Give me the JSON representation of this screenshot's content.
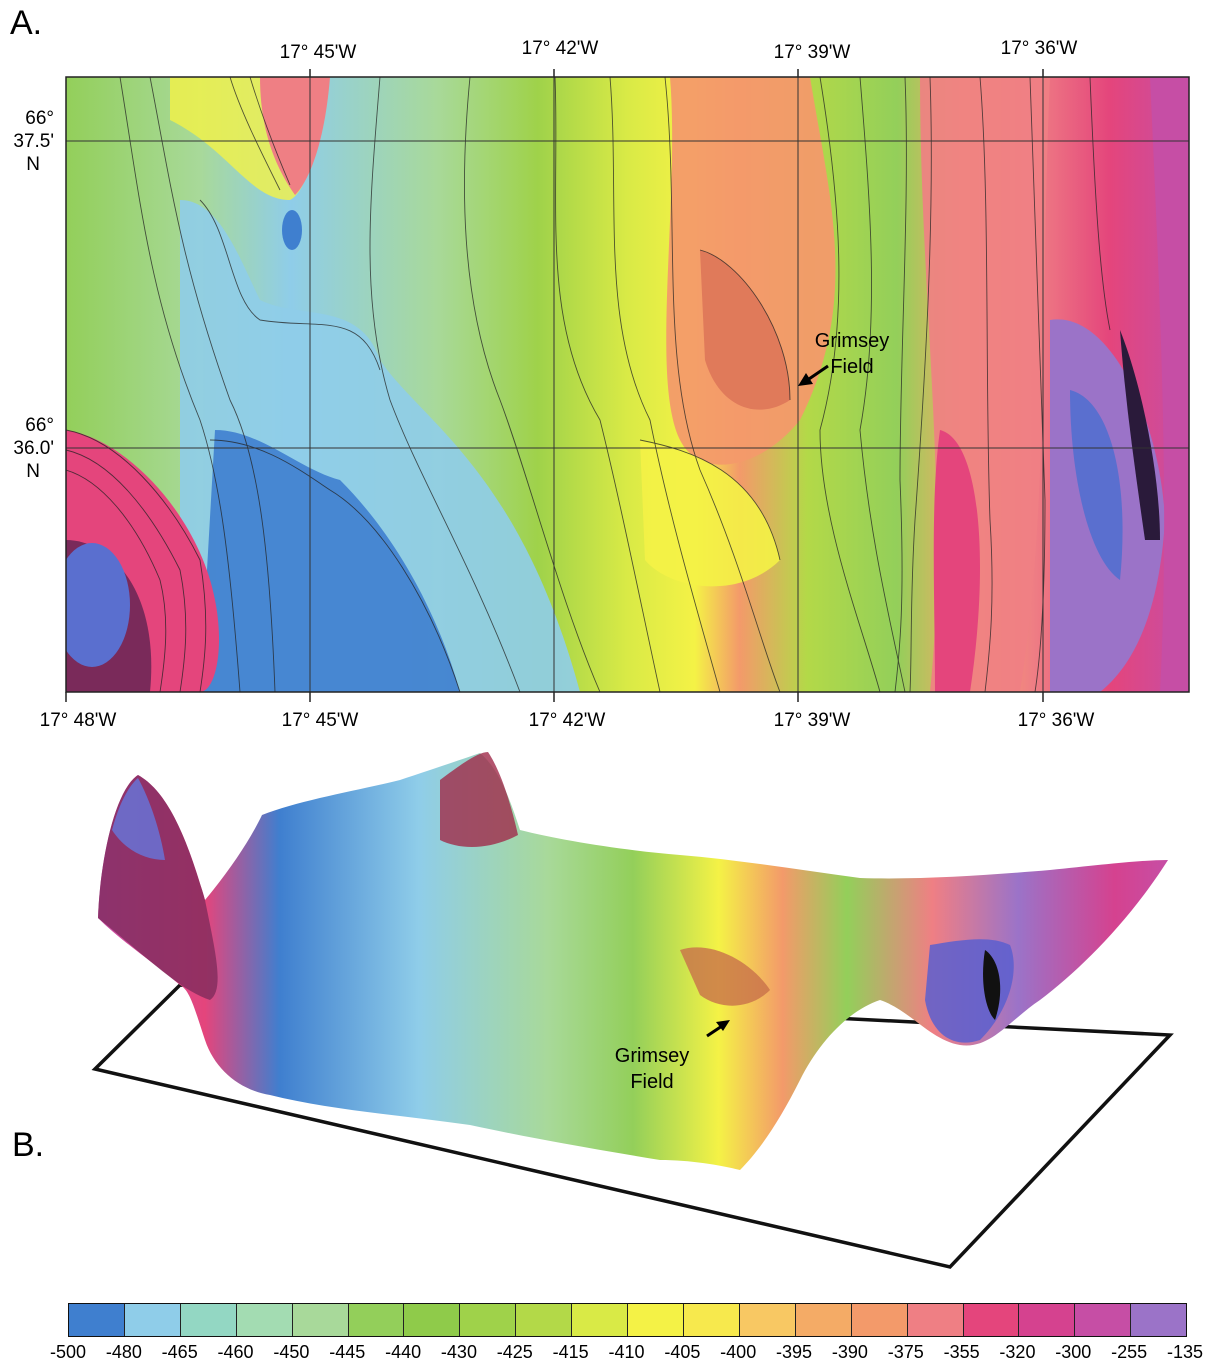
{
  "figure": {
    "panel_a_label": "A.",
    "panel_b_label": "B."
  },
  "map": {
    "top_longitudes": [
      "17° 45'W",
      "17° 42'W",
      "17° 39'W",
      "17° 36'W"
    ],
    "bottom_longitudes": [
      "17° 48'W",
      "17° 45'W",
      "17° 42'W",
      "17° 39'W",
      "17° 36'W"
    ],
    "latitudes": [
      {
        "deg": "66°",
        "min": "37.5'",
        "hem": "N"
      },
      {
        "deg": "66°",
        "min": "36.0'",
        "hem": "N"
      }
    ],
    "annotation_line1": "Grimsey",
    "annotation_line2": "Field"
  },
  "perspective": {
    "annotation_line1": "Grimsey",
    "annotation_line2": "Field"
  },
  "colorbar": {
    "ticks": [
      "-500",
      "-480",
      "-465",
      "-460",
      "-450",
      "-445",
      "-440",
      "-430",
      "-425",
      "-415",
      "-410",
      "-405",
      "-400",
      "-395",
      "-390",
      "-375",
      "-355",
      "-320",
      "-300",
      "-255",
      "-135"
    ],
    "colors": [
      "#3f7fcf",
      "#8fcde9",
      "#93d7c3",
      "#a3dcb2",
      "#a8d99a",
      "#93cf5a",
      "#8fcb4a",
      "#9fd24a",
      "#b3d948",
      "#d9ea46",
      "#f4f246",
      "#f7e94d",
      "#f8c863",
      "#f4ab66",
      "#f39a6a",
      "#ef7f84",
      "#e4457c",
      "#d5428f",
      "#c64ea5",
      "#9b73c8"
    ]
  }
}
